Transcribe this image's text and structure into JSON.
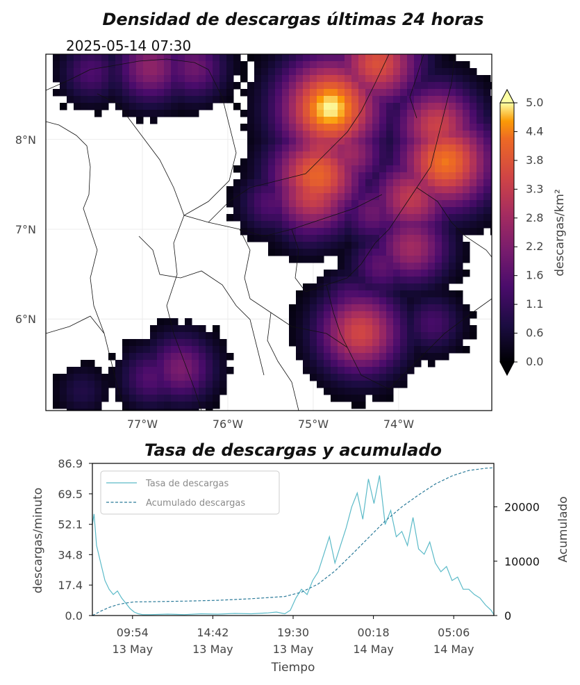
{
  "map_title": "Densidad de descargas últimas 24 horas",
  "timestamp": "2025-05-14 07:30",
  "map": {
    "lon_range": [
      -78.0,
      -73.0
    ],
    "lat_range": [
      5.0,
      9.0
    ],
    "lon_ticks": [
      "77°W",
      "76°W",
      "75°W",
      "74°W"
    ],
    "lat_ticks": [
      "8°N",
      "7°N",
      "6°N"
    ],
    "colorbar_label": "descargas/km²",
    "colorbar_ticks": [
      "0.0",
      "0.6",
      "1.1",
      "1.6",
      "2.2",
      "2.8",
      "3.3",
      "3.8",
      "4.4",
      "5.0"
    ],
    "colormap": "inferno",
    "density_clusters": [
      {
        "lon": -77.6,
        "lat": 8.75,
        "peak": 1.5
      },
      {
        "lon": -76.9,
        "lat": 8.8,
        "peak": 2.5
      },
      {
        "lon": -76.4,
        "lat": 8.8,
        "peak": 2.0
      },
      {
        "lon": -74.8,
        "lat": 8.35,
        "peak": 5.0
      },
      {
        "lon": -74.9,
        "lat": 7.9,
        "peak": 3.3
      },
      {
        "lon": -74.95,
        "lat": 7.6,
        "peak": 4.2
      },
      {
        "lon": -75.0,
        "lat": 7.4,
        "peak": 3.6
      },
      {
        "lon": -75.5,
        "lat": 7.3,
        "peak": 1.6
      },
      {
        "lon": -75.05,
        "lat": 7.15,
        "peak": 2.0
      },
      {
        "lon": -74.6,
        "lat": 7.85,
        "peak": 2.8
      },
      {
        "lon": -74.25,
        "lat": 8.85,
        "peak": 3.8
      },
      {
        "lon": -73.55,
        "lat": 8.15,
        "peak": 3.5
      },
      {
        "lon": -73.45,
        "lat": 7.75,
        "peak": 4.4
      },
      {
        "lon": -73.85,
        "lat": 7.35,
        "peak": 3.3
      },
      {
        "lon": -74.3,
        "lat": 7.2,
        "peak": 2.0
      },
      {
        "lon": -73.85,
        "lat": 6.8,
        "peak": 2.8
      },
      {
        "lon": -74.2,
        "lat": 6.6,
        "peak": 1.8
      },
      {
        "lon": -74.45,
        "lat": 5.85,
        "peak": 3.6
      },
      {
        "lon": -74.55,
        "lat": 6.15,
        "peak": 1.8
      },
      {
        "lon": -73.6,
        "lat": 5.95,
        "peak": 1.4
      },
      {
        "lon": -76.9,
        "lat": 5.35,
        "peak": 1.6
      },
      {
        "lon": -76.55,
        "lat": 5.45,
        "peak": 2.2
      },
      {
        "lon": -77.7,
        "lat": 5.2,
        "peak": 0.8
      }
    ]
  },
  "ts_title": "Tasa de descargas y acumulado",
  "chart_data": {
    "type": "line",
    "xlabel": "Tiempo",
    "ylabel": "descargas/minuto",
    "y2label": "Acumulado",
    "ylim": [
      0,
      86.9
    ],
    "yticks": [
      "0.0",
      "17.4",
      "34.8",
      "52.1",
      "69.5",
      "86.9"
    ],
    "y2lim": [
      0,
      28000
    ],
    "y2ticks": [
      "0",
      "10000",
      "20000"
    ],
    "xlim": [
      "2025-05-13 07:30",
      "2025-05-14 07:30"
    ],
    "xticks": [
      {
        "time": "2025-05-13 09:54",
        "line1": "09:54",
        "line2": "13 May"
      },
      {
        "time": "2025-05-13 14:42",
        "line1": "14:42",
        "line2": "13 May"
      },
      {
        "time": "2025-05-13 19:30",
        "line1": "19:30",
        "line2": "13 May"
      },
      {
        "time": "2025-05-14 00:18",
        "line1": "00:18",
        "line2": "14 May"
      },
      {
        "time": "2025-05-14 05:06",
        "line1": "05:06",
        "line2": "14 May"
      }
    ],
    "legend_position": "top-left",
    "series": [
      {
        "name": "Tasa de descargas",
        "axis": "left",
        "color": "#5bbac8",
        "style": "solid",
        "x": [
          "2025-05-13 07:30",
          "2025-05-13 07:36",
          "2025-05-13 07:45",
          "2025-05-13 08:00",
          "2025-05-13 08:15",
          "2025-05-13 08:30",
          "2025-05-13 08:45",
          "2025-05-13 09:00",
          "2025-05-13 09:15",
          "2025-05-13 09:30",
          "2025-05-13 09:45",
          "2025-05-13 10:00",
          "2025-05-13 10:15",
          "2025-05-13 10:30",
          "2025-05-13 11:00",
          "2025-05-13 12:00",
          "2025-05-13 13:00",
          "2025-05-13 14:00",
          "2025-05-13 15:00",
          "2025-05-13 16:00",
          "2025-05-13 17:00",
          "2025-05-13 18:00",
          "2025-05-13 18:30",
          "2025-05-13 19:00",
          "2025-05-13 19:20",
          "2025-05-13 19:40",
          "2025-05-13 20:00",
          "2025-05-13 20:20",
          "2025-05-13 20:40",
          "2025-05-13 21:00",
          "2025-05-13 21:20",
          "2025-05-13 21:40",
          "2025-05-13 22:00",
          "2025-05-13 22:20",
          "2025-05-13 22:40",
          "2025-05-13 23:00",
          "2025-05-13 23:20",
          "2025-05-13 23:40",
          "2025-05-14 00:00",
          "2025-05-14 00:20",
          "2025-05-14 00:40",
          "2025-05-14 01:00",
          "2025-05-14 01:20",
          "2025-05-14 01:40",
          "2025-05-14 02:00",
          "2025-05-14 02:20",
          "2025-05-14 02:40",
          "2025-05-14 03:00",
          "2025-05-14 03:20",
          "2025-05-14 03:40",
          "2025-05-14 04:00",
          "2025-05-14 04:20",
          "2025-05-14 04:40",
          "2025-05-14 05:00",
          "2025-05-14 05:20",
          "2025-05-14 05:40",
          "2025-05-14 06:00",
          "2025-05-14 06:20",
          "2025-05-14 06:40",
          "2025-05-14 07:00",
          "2025-05-14 07:20",
          "2025-05-14 07:30"
        ],
        "values": [
          52,
          58,
          40,
          30,
          20,
          15,
          12,
          14,
          10,
          7,
          4,
          2,
          1,
          0.5,
          0.5,
          0.8,
          0.5,
          1.0,
          0.8,
          1.2,
          1.0,
          1.5,
          2.0,
          1.0,
          3.0,
          10,
          15,
          12,
          20,
          25,
          35,
          45,
          30,
          40,
          50,
          62,
          70,
          55,
          78,
          64,
          80,
          52,
          60,
          45,
          48,
          40,
          56,
          38,
          35,
          42,
          30,
          25,
          28,
          20,
          22,
          15,
          15,
          12,
          10,
          6,
          3,
          0.5
        ]
      },
      {
        "name": "Acumulado descargas",
        "axis": "right",
        "color": "#2a7a99",
        "style": "dashed",
        "x": [
          "2025-05-13 07:30",
          "2025-05-13 08:00",
          "2025-05-13 08:30",
          "2025-05-13 09:00",
          "2025-05-13 09:30",
          "2025-05-13 10:00",
          "2025-05-13 11:00",
          "2025-05-13 13:00",
          "2025-05-13 15:00",
          "2025-05-13 17:00",
          "2025-05-13 19:00",
          "2025-05-13 20:00",
          "2025-05-13 21:00",
          "2025-05-13 22:00",
          "2025-05-13 23:00",
          "2025-05-14 00:00",
          "2025-05-14 01:00",
          "2025-05-14 02:00",
          "2025-05-14 03:00",
          "2025-05-14 04:00",
          "2025-05-14 05:00",
          "2025-05-14 06:00",
          "2025-05-14 07:00",
          "2025-05-14 07:30"
        ],
        "values": [
          0,
          800,
          1500,
          2000,
          2300,
          2500,
          2550,
          2650,
          2800,
          3100,
          3500,
          4300,
          5800,
          8200,
          11200,
          14300,
          17400,
          20000,
          22200,
          24200,
          25700,
          26700,
          27100,
          27200
        ]
      }
    ]
  },
  "colors": {
    "rate_line": "#5bbac8",
    "cumulative_line": "#2a7a99"
  }
}
